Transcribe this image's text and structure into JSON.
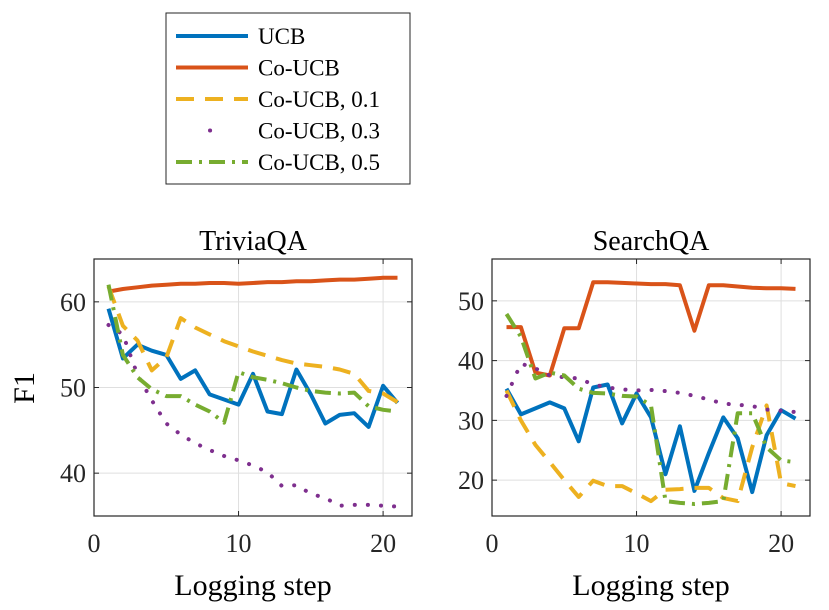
{
  "chart_data": [
    {
      "type": "line",
      "title": "TriviaQA",
      "xlabel": "Logging step",
      "ylabel": "F1",
      "xlim": [
        0,
        22
      ],
      "ylim": [
        35,
        65
      ],
      "xticks": [
        0,
        10,
        20
      ],
      "yticks": [
        40,
        50,
        60
      ],
      "grid": true,
      "series": [
        {
          "name": "UCB",
          "x": [
            1,
            2,
            3,
            4,
            5,
            6,
            7,
            8,
            9,
            10,
            11,
            12,
            13,
            14,
            15,
            16,
            17,
            18,
            19,
            20,
            21
          ],
          "values": [
            59.2,
            53.4,
            55,
            54.3,
            53.8,
            51,
            52,
            49.2,
            48.6,
            48,
            51.6,
            47.2,
            46.9,
            52.1,
            49.2,
            45.8,
            46.8,
            47,
            45.4,
            50.2,
            48.2
          ]
        },
        {
          "name": "Co-UCB",
          "x": [
            1,
            2,
            3,
            4,
            5,
            6,
            7,
            8,
            9,
            10,
            11,
            12,
            13,
            14,
            15,
            16,
            17,
            18,
            19,
            20,
            21
          ],
          "values": [
            61.2,
            61.5,
            61.7,
            61.9,
            62,
            62.1,
            62.1,
            62.2,
            62.2,
            62.1,
            62.2,
            62.3,
            62.3,
            62.4,
            62.4,
            62.5,
            62.6,
            62.6,
            62.7,
            62.8,
            62.8
          ]
        },
        {
          "name": "Co-UCB, 0.1",
          "x": [
            1,
            2,
            3,
            4,
            5,
            6,
            7,
            8,
            9,
            10,
            11,
            12,
            13,
            14,
            15,
            16,
            17,
            18,
            19,
            20,
            21
          ],
          "values": [
            61.8,
            57.2,
            55.5,
            52,
            53.5,
            58.1,
            57,
            56.2,
            55.4,
            54.8,
            54.2,
            53.7,
            53.2,
            52.8,
            52.6,
            52.4,
            52.1,
            51.6,
            49.6,
            49.3,
            48.3
          ]
        },
        {
          "name": "Co-UCB, 0.3",
          "x": [
            1,
            2,
            3,
            4,
            5,
            6,
            7,
            8,
            9,
            10,
            11,
            12,
            13,
            14,
            15,
            16,
            17,
            18,
            19,
            20,
            21
          ],
          "values": [
            57.3,
            56.2,
            51.5,
            48.5,
            45.8,
            44.5,
            43.5,
            42.7,
            42,
            41.5,
            40.9,
            40.1,
            38.5,
            38.6,
            37.6,
            37.1,
            36.2,
            36.3,
            36.3,
            36.2,
            36.1
          ]
        },
        {
          "name": "Co-UCB, 0.5",
          "x": [
            1,
            2,
            3,
            4,
            5,
            6,
            7,
            8,
            9,
            10,
            11,
            12,
            13,
            14,
            15,
            16,
            17,
            18,
            19,
            20,
            21
          ],
          "values": [
            62,
            53.8,
            51.2,
            49.8,
            49,
            49,
            48,
            47.2,
            45.9,
            51.8,
            51.2,
            50.9,
            50.5,
            50,
            49.6,
            49.4,
            49.3,
            49.4,
            47.8,
            47.4,
            47.2
          ]
        }
      ]
    },
    {
      "type": "line",
      "title": "SearchQA",
      "xlabel": "Logging step",
      "ylabel": "",
      "xlim": [
        0,
        22
      ],
      "ylim": [
        14,
        57
      ],
      "xticks": [
        0,
        10,
        20
      ],
      "yticks": [
        20,
        30,
        40,
        50
      ],
      "grid": true,
      "series": [
        {
          "name": "UCB",
          "x": [
            1,
            2,
            3,
            4,
            5,
            6,
            7,
            8,
            9,
            10,
            11,
            12,
            13,
            14,
            15,
            16,
            17,
            18,
            19,
            20,
            21
          ],
          "values": [
            35.3,
            31,
            32,
            33,
            32,
            26.5,
            35.5,
            36,
            29.5,
            34.5,
            30.5,
            21,
            29,
            18.2,
            24.5,
            30.5,
            27,
            18,
            27.5,
            31.7,
            30.3
          ]
        },
        {
          "name": "Co-UCB",
          "x": [
            1,
            2,
            3,
            4,
            5,
            6,
            7,
            8,
            9,
            10,
            11,
            12,
            13,
            14,
            15,
            16,
            17,
            18,
            19,
            20,
            21
          ],
          "values": [
            45.6,
            45.6,
            38,
            37.5,
            45.4,
            45.4,
            53.1,
            53.1,
            53,
            52.9,
            52.8,
            52.8,
            52.6,
            45,
            52.6,
            52.6,
            52.4,
            52.2,
            52.1,
            52.1,
            52
          ]
        },
        {
          "name": "Co-UCB, 0.1",
          "x": [
            1,
            2,
            3,
            4,
            5,
            6,
            7,
            8,
            9,
            10,
            11,
            12,
            13,
            14,
            15,
            16,
            17,
            18,
            19,
            20,
            21
          ],
          "values": [
            35,
            30,
            25.9,
            23,
            20,
            17.2,
            19.9,
            19,
            19,
            17.8,
            16.5,
            18.4,
            18.5,
            18.7,
            18.7,
            17,
            16.5,
            25.5,
            32.5,
            19.5,
            19
          ]
        },
        {
          "name": "Co-UCB, 0.3",
          "x": [
            1,
            2,
            3,
            4,
            5,
            6,
            7,
            8,
            9,
            10,
            11,
            12,
            13,
            14,
            15,
            16,
            17,
            18,
            19,
            20,
            21
          ],
          "values": [
            34.1,
            39.5,
            38.7,
            37.5,
            37.2,
            37,
            36,
            35.5,
            35.2,
            35,
            35.1,
            34.9,
            34.6,
            34.1,
            33.5,
            32.8,
            32.6,
            32.4,
            31.8,
            31.6,
            31.4
          ]
        },
        {
          "name": "Co-UCB, 0.5",
          "x": [
            1,
            2,
            3,
            4,
            5,
            6,
            7,
            8,
            9,
            10,
            11,
            12,
            13,
            14,
            15,
            16,
            17,
            18,
            19,
            20,
            21
          ],
          "values": [
            47.8,
            44,
            37,
            38,
            37.5,
            35.3,
            34.6,
            34.5,
            34.1,
            34,
            32.5,
            16.5,
            16.2,
            16,
            16.2,
            16.5,
            31.2,
            31.2,
            25.5,
            23.3,
            23
          ]
        }
      ]
    }
  ],
  "legend": [
    {
      "name": "UCB",
      "color": "#0072BD",
      "style": "solid"
    },
    {
      "name": "Co-UCB",
      "color": "#D95319",
      "style": "solid"
    },
    {
      "name": "Co-UCB, 0.1",
      "color": "#EDB120",
      "style": "dashed"
    },
    {
      "name": "Co-UCB, 0.3",
      "color": "#7E2F8E",
      "style": "dotted"
    },
    {
      "name": "Co-UCB, 0.5",
      "color": "#77AC30",
      "style": "dashdot"
    }
  ]
}
